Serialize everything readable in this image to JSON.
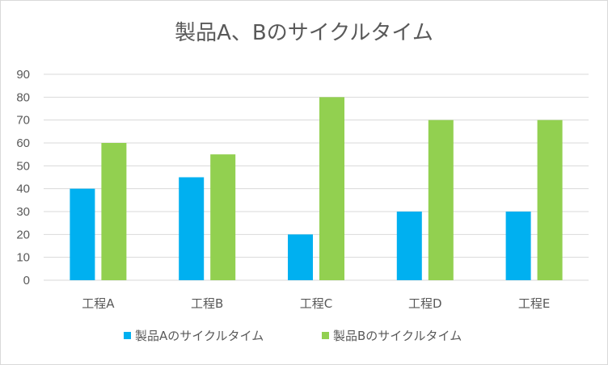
{
  "chart_data": {
    "type": "bar",
    "title": "製品A、Bのサイクルタイム",
    "categories": [
      "工程A",
      "工程B",
      "工程C",
      "工程D",
      "工程E"
    ],
    "series": [
      {
        "name": "製品Aのサイクルタイム",
        "values": [
          40,
          45,
          20,
          30,
          30
        ],
        "color": "#00b0f0"
      },
      {
        "name": "製品Bのサイクルタイム",
        "values": [
          60,
          55,
          80,
          70,
          70
        ],
        "color": "#92d050"
      }
    ],
    "ylim": [
      0,
      90
    ],
    "yticks": [
      0,
      10,
      20,
      30,
      40,
      50,
      60,
      70,
      80,
      90
    ],
    "grid": true,
    "legend": "bottom",
    "colors": {
      "grid": "#d9d9d9",
      "axis": "#d9d9d9",
      "text": "#595959"
    }
  }
}
